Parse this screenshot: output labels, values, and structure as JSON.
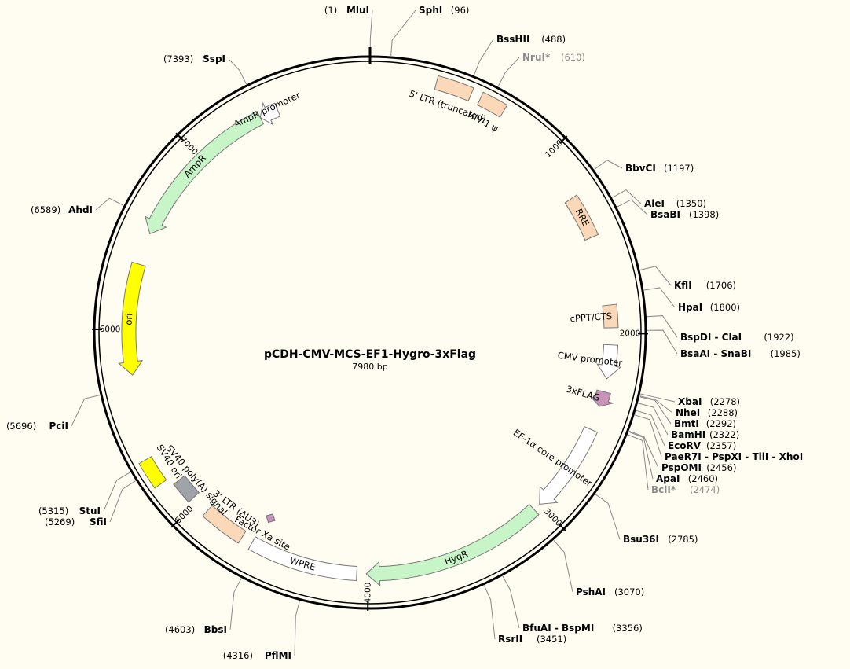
{
  "plasmid": {
    "name": "pCDH-CMV-MCS-EF1-Hygro-3xFlag",
    "size_label": "7980 bp",
    "length": 7980,
    "colors": {
      "background": "#fffdf2",
      "backbone": "#000000",
      "leader": "#888888",
      "ltr_feature": "#fbd9b8",
      "marker": "#c7f5c7",
      "promoter": "#ffffff",
      "ori": "#ffff00",
      "ori_sv40": "#ffff00",
      "sv40_polya": "#a0a4a8",
      "tag": "#c793b8",
      "grey_text": "#8a8a8a"
    }
  },
  "ticks": [
    {
      "pos": 1000,
      "label": "1000"
    },
    {
      "pos": 2000,
      "label": "2000"
    },
    {
      "pos": 3000,
      "label": "3000"
    },
    {
      "pos": 4000,
      "label": "4000"
    },
    {
      "pos": 5000,
      "label": "5000"
    },
    {
      "pos": 6000,
      "label": "6000"
    },
    {
      "pos": 7000,
      "label": "7000"
    }
  ],
  "sites": [
    {
      "key": "mlui",
      "name": "MluI",
      "pos_label": "(1)",
      "pos": 1,
      "side": "left"
    },
    {
      "key": "sphi",
      "name": "SphI",
      "pos_label": "(96)",
      "pos": 96,
      "side": "right"
    },
    {
      "key": "bsshii",
      "name": "BssHII",
      "pos_label": "(488)",
      "pos": 488,
      "side": "right"
    },
    {
      "key": "nrui",
      "name": "NruI*",
      "pos_label": "(610)",
      "pos": 610,
      "side": "right",
      "grey": true
    },
    {
      "key": "bbvci",
      "name": "BbvCI",
      "pos_label": "(1197)",
      "pos": 1197,
      "side": "right"
    },
    {
      "key": "alei",
      "name": "AleI",
      "pos_label": "(1350)",
      "pos": 1350,
      "side": "right"
    },
    {
      "key": "bsabi",
      "name": "BsaBI",
      "pos_label": "(1398)",
      "pos": 1398,
      "side": "right"
    },
    {
      "key": "kfli",
      "name": "KflI",
      "pos_label": "(1706)",
      "pos": 1706,
      "side": "right"
    },
    {
      "key": "hpai",
      "name": "HpaI",
      "pos_label": "(1800)",
      "pos": 1800,
      "side": "right"
    },
    {
      "key": "bspdi",
      "name": "BspDI - ClaI",
      "pos_label": "(1922)",
      "pos": 1922,
      "side": "right"
    },
    {
      "key": "bsaai",
      "name": "BsaAI - SnaBI",
      "pos_label": "(1985)",
      "pos": 1985,
      "side": "right"
    },
    {
      "key": "xbai",
      "name": "XbaI",
      "pos_label": "(2278)",
      "pos": 2278,
      "side": "right"
    },
    {
      "key": "nhei",
      "name": "NheI",
      "pos_label": "(2288)",
      "pos": 2288,
      "side": "right"
    },
    {
      "key": "bmti",
      "name": "BmtI",
      "pos_label": "(2292)",
      "pos": 2292,
      "side": "right"
    },
    {
      "key": "bamhi",
      "name": "BamHI",
      "pos_label": "(2322)",
      "pos": 2322,
      "side": "right"
    },
    {
      "key": "ecorv",
      "name": "EcoRV",
      "pos_label": "(2357)",
      "pos": 2357,
      "side": "right"
    },
    {
      "key": "paer7i",
      "name": "PaeR7I - PspXI - TliI - XhoI",
      "pos_label": "(2378)",
      "pos": 2378,
      "side": "right"
    },
    {
      "key": "pspomi",
      "name": "PspOMI",
      "pos_label": "(2456)",
      "pos": 2456,
      "side": "right"
    },
    {
      "key": "apai",
      "name": "ApaI",
      "pos_label": "(2460)",
      "pos": 2460,
      "side": "right"
    },
    {
      "key": "bcli",
      "name": "BclI*",
      "pos_label": "(2474)",
      "pos": 2474,
      "side": "right",
      "grey": true
    },
    {
      "key": "bsu36i",
      "name": "Bsu36I",
      "pos_label": "(2785)",
      "pos": 2785,
      "side": "right"
    },
    {
      "key": "pshai",
      "name": "PshAI",
      "pos_label": "(3070)",
      "pos": 3070,
      "side": "right"
    },
    {
      "key": "bfuai",
      "name": "BfuAI - BspMI",
      "pos_label": "(3356)",
      "pos": 3356,
      "side": "right"
    },
    {
      "key": "rsrii",
      "name": "RsrII",
      "pos_label": "(3451)",
      "pos": 3451,
      "side": "right"
    },
    {
      "key": "pflmi",
      "name": "PflMI",
      "pos_label": "(4316)",
      "pos": 4316,
      "side": "left"
    },
    {
      "key": "bbsi",
      "name": "BbsI",
      "pos_label": "(4603)",
      "pos": 4603,
      "side": "left"
    },
    {
      "key": "sfii",
      "name": "SfiI",
      "pos_label": "(5269)",
      "pos": 5269,
      "side": "left"
    },
    {
      "key": "stui",
      "name": "StuI",
      "pos_label": "(5315)",
      "pos": 5315,
      "side": "left"
    },
    {
      "key": "pcii",
      "name": "PciI",
      "pos_label": "(5696)",
      "pos": 5696,
      "side": "left"
    },
    {
      "key": "ahdi",
      "name": "AhdI",
      "pos_label": "(6589)",
      "pos": 6589,
      "side": "left"
    },
    {
      "key": "sspi",
      "name": "SspI",
      "pos_label": "(7393)",
      "pos": 7393,
      "side": "left"
    }
  ],
  "features": [
    {
      "key": "ltr5",
      "label": "5' LTR (truncated)",
      "start": 330,
      "end": 510,
      "type": "box",
      "color": "ltr_feature"
    },
    {
      "key": "hiv1psi",
      "label": "HIV-1 ψ",
      "start": 560,
      "end": 690,
      "type": "box",
      "color": "ltr_feature"
    },
    {
      "key": "rre",
      "label": "RRE",
      "start": 1250,
      "end": 1480,
      "type": "box",
      "color": "ltr_feature"
    },
    {
      "key": "cppt",
      "label": "cPPT/CTS",
      "start": 1850,
      "end": 1970,
      "type": "box",
      "color": "ltr_feature"
    },
    {
      "key": "cmv",
      "label": "CMV promoter",
      "start": 2060,
      "end": 2240,
      "type": "arrow",
      "color": "promoter"
    },
    {
      "key": "flag3x",
      "label": "3xFLAG",
      "start": 2310,
      "end": 2390,
      "type": "arrow",
      "color": "tag"
    },
    {
      "key": "ef1a",
      "label": "EF-1α core promoter",
      "start": 2520,
      "end": 3000,
      "type": "arrow",
      "color": "promoter"
    },
    {
      "key": "hygr",
      "label": "HygR",
      "start": 3040,
      "end": 4010,
      "type": "arrow",
      "color": "marker"
    },
    {
      "key": "wpre",
      "label": "WPRE",
      "start": 4060,
      "end": 4640,
      "type": "box",
      "color": "promoter"
    },
    {
      "key": "factorxa",
      "label": "Factor Xa site",
      "start": 4590,
      "end": 4640,
      "type": "diamond",
      "color": "tag"
    },
    {
      "key": "ltr3",
      "label": "3' LTR (ΔU3)",
      "start": 4700,
      "end": 4930,
      "type": "box",
      "color": "ltr_feature"
    },
    {
      "key": "sv40polya",
      "label": "SV40 poly(A) signal",
      "start": 5030,
      "end": 5150,
      "type": "box",
      "color": "sv40_polya"
    },
    {
      "key": "sv40ori",
      "label": "SV40 ori",
      "start": 5190,
      "end": 5330,
      "type": "box",
      "color": "ori_sv40"
    },
    {
      "key": "ori",
      "label": "ori",
      "start": 5760,
      "end": 6350,
      "type": "arrow",
      "color": "ori",
      "reverse": true
    },
    {
      "key": "ampr",
      "label": "AmpR",
      "start": 6520,
      "end": 7380,
      "type": "arrow",
      "color": "marker",
      "reverse": true
    },
    {
      "key": "amprprom",
      "label": "AmpR promoter",
      "start": 7380,
      "end": 7480,
      "type": "arrow",
      "color": "promoter",
      "reverse": true
    }
  ]
}
